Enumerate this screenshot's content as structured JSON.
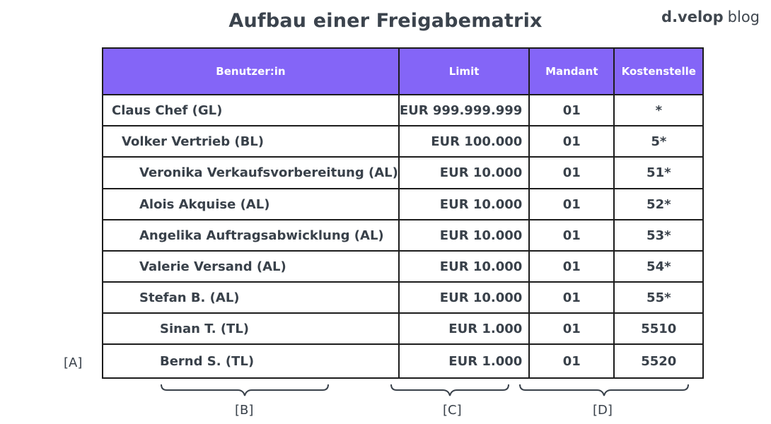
{
  "title": "Aufbau einer Freigabematrix",
  "brand": {
    "name": "d.velop",
    "suffix": "blog"
  },
  "table": {
    "headers": [
      "Benutzer:in",
      "Limit",
      "Mandant",
      "Kostenstelle"
    ],
    "rows": [
      {
        "user": "Claus Chef (GL)",
        "limit": "EUR 999.999.999",
        "mandant": "01",
        "kostenstelle": "*",
        "level": 0
      },
      {
        "user": "Volker Vertrieb (BL)",
        "limit": "EUR 100.000",
        "mandant": "01",
        "kostenstelle": "5*",
        "level": 1
      },
      {
        "user": "Veronika Verkaufsvorbereitung (AL)",
        "limit": "EUR 10.000",
        "mandant": "01",
        "kostenstelle": "51*",
        "level": 2
      },
      {
        "user": "Alois Akquise (AL)",
        "limit": "EUR 10.000",
        "mandant": "01",
        "kostenstelle": "52*",
        "level": 2
      },
      {
        "user": "Angelika Auftragsabwicklung (AL)",
        "limit": "EUR 10.000",
        "mandant": "01",
        "kostenstelle": "53*",
        "level": 2
      },
      {
        "user": "Valerie Versand (AL)",
        "limit": "EUR 10.000",
        "mandant": "01",
        "kostenstelle": "54*",
        "level": 2
      },
      {
        "user": "Stefan B. (AL)",
        "limit": "EUR 10.000",
        "mandant": "01",
        "kostenstelle": "55*",
        "level": 2
      },
      {
        "user": "Sinan T. (TL)",
        "limit": "EUR 1.000",
        "mandant": "01",
        "kostenstelle": "5510",
        "level": 3
      },
      {
        "user": "Bernd S. (TL)",
        "limit": "EUR 1.000",
        "mandant": "01",
        "kostenstelle": "5520",
        "level": 3
      }
    ]
  },
  "markers": {
    "a": "[A]",
    "b": "[B]",
    "c": "[C]",
    "d": "[D]"
  },
  "colors": {
    "header_bg": "#8465f7",
    "header_text": "#ffffff",
    "text": "#39414a",
    "border": "#1c1c1c"
  }
}
